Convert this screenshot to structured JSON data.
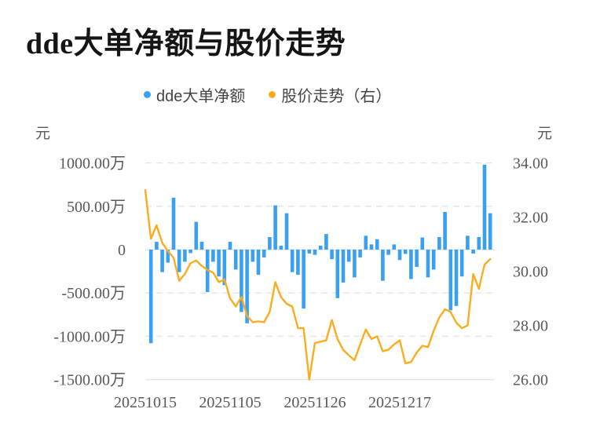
{
  "title": "dde大单净额与股价走势",
  "legend": [
    {
      "label": "dde大单净额",
      "color": "#3aa0f2",
      "marker": "circle"
    },
    {
      "label": "股价走势（右）",
      "color": "#fbac1f",
      "marker": "circle"
    }
  ],
  "axes": {
    "left_unit": "元",
    "right_unit": "元",
    "left_ticks": [
      "1000.00万",
      "500.00万",
      "0",
      "-500.00万",
      "-1000.00万",
      "-1500.00万"
    ],
    "right_ticks": [
      "34.00",
      "32.00",
      "30.00",
      "28.00",
      "26.00"
    ],
    "x_ticks": [
      "20251015",
      "20251105",
      "20251126",
      "20251217"
    ]
  },
  "chart_data": {
    "type": "bar",
    "title": "dde大单净额与股价走势",
    "grid": "horizontal-dashed",
    "legend_position": "top-center",
    "x_axis": {
      "tick_labels": [
        "20251015",
        "20251105",
        "20251126",
        "20251217"
      ],
      "tick_day_indices": [
        0,
        15,
        30,
        45
      ],
      "total_days": 62
    },
    "left_axis": {
      "unit": "元",
      "tick_values_wan": [
        1000,
        500,
        0,
        -500,
        -1000,
        -1500
      ],
      "tick_labels": [
        "1000.00万",
        "500.00万",
        "0",
        "-500.00万",
        "-1000.00万",
        "-1500.00万"
      ],
      "max_wan": 1000,
      "min_wan": -1500
    },
    "right_axis": {
      "unit": "元",
      "tick_values": [
        34,
        32,
        30,
        28,
        26
      ],
      "tick_labels": [
        "34.00",
        "32.00",
        "30.00",
        "28.00",
        "26.00"
      ],
      "max": 34,
      "min": 26
    },
    "series": [
      {
        "name": "dde大单净额",
        "type": "bar",
        "axis": "left",
        "unit": "万元",
        "color": "#3aa0f2",
        "day_offset": 1,
        "values": [
          -1080,
          90,
          -260,
          -150,
          600,
          -260,
          -140,
          -40,
          320,
          90,
          -490,
          -140,
          -310,
          -410,
          90,
          -230,
          -720,
          -850,
          -140,
          -290,
          -90,
          145,
          510,
          45,
          420,
          -260,
          -290,
          -680,
          -45,
          -60,
          45,
          180,
          -110,
          -560,
          -380,
          -140,
          -320,
          -90,
          160,
          60,
          120,
          -360,
          -60,
          60,
          -120,
          -50,
          -340,
          -200,
          140,
          -320,
          -230,
          145,
          435,
          -700,
          -650,
          -310,
          160,
          -45,
          145,
          980,
          420
        ]
      },
      {
        "name": "股价走势（右）",
        "type": "line",
        "axis": "right",
        "unit": "元",
        "color": "#fbac1f",
        "day_offset": 0,
        "values": [
          33.0,
          31.2,
          31.7,
          31.05,
          30.75,
          30.5,
          29.65,
          29.9,
          30.3,
          30.4,
          30.2,
          30.05,
          29.95,
          29.6,
          29.7,
          29.0,
          28.7,
          29.05,
          28.35,
          28.12,
          28.15,
          28.12,
          28.5,
          29.6,
          29.05,
          28.8,
          28.7,
          27.9,
          27.9,
          26.0,
          27.35,
          27.4,
          27.45,
          28.2,
          27.5,
          27.1,
          26.9,
          26.72,
          27.3,
          27.85,
          27.5,
          27.6,
          27.05,
          27.1,
          27.3,
          27.45,
          26.6,
          26.65,
          27.0,
          27.25,
          27.2,
          27.8,
          28.3,
          28.6,
          28.5,
          28.1,
          27.9,
          28.0,
          29.9,
          29.35,
          30.25,
          30.45
        ]
      }
    ]
  },
  "colors": {
    "bar": "#3aa0f2",
    "line": "#fbac1f",
    "grid": "#e5e5e5",
    "zero_line": "#e0e0e0",
    "tick_text": "#595959",
    "title_text": "#151515",
    "background": "#ffffff"
  }
}
